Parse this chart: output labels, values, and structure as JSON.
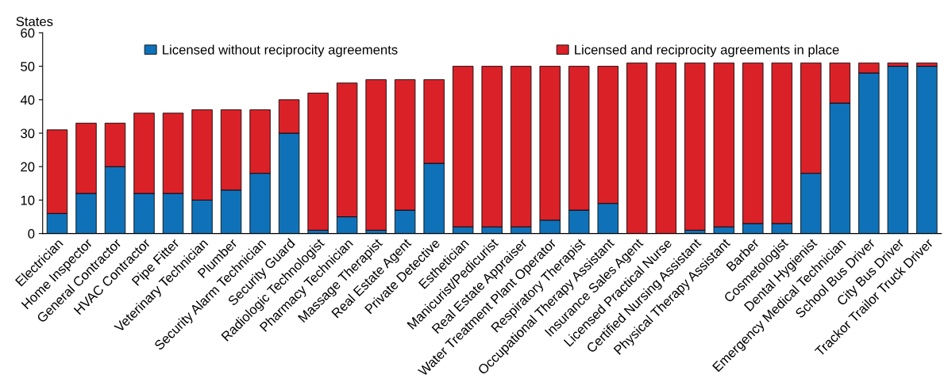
{
  "chart_data": {
    "type": "bar",
    "stacked": true,
    "ylabel": "States",
    "categories": [
      "Electrician",
      "Home Inspector",
      "General Contractor",
      "HVAC Contractor",
      "Pipe Fitter",
      "Veterinary Technician",
      "Plumber",
      "Security Alarm Technician",
      "Security Guard",
      "Radiologic Technologist",
      "Pharmacy Technician",
      "Massage Therapist",
      "Real Estate Agent",
      "Private Detective",
      "Esthetician",
      "Manicurist/Pedicurist",
      "Real Estate Appraiser",
      "Water Treatment Plant Operator",
      "Respiratory Therapist",
      "Occupational Therapy Assistant",
      "Insurance Sales Agent",
      "Licensed Practical Nurse",
      "Certified Nursing Assistant",
      "Physical Therapy Assistant",
      "Barber",
      "Cosmetologist",
      "Dental Hygienist",
      "Emergency Medical Technician",
      "School Bus Driver",
      "City Bus Driver",
      "Trackor Trailor Truck Driver"
    ],
    "series": [
      {
        "name": "Licensed without reciprocity agreements",
        "color": "#0f72b8",
        "values": [
          6,
          12,
          20,
          12,
          12,
          10,
          13,
          18,
          30,
          1,
          5,
          1,
          7,
          21,
          2,
          2,
          2,
          4,
          7,
          9,
          0,
          0,
          1,
          2,
          3,
          3,
          18,
          39,
          48,
          50,
          50
        ]
      },
      {
        "name": "Licensed and reciprocity agreements in place",
        "color": "#db2128",
        "values": [
          25,
          21,
          13,
          24,
          24,
          27,
          24,
          19,
          10,
          41,
          40,
          45,
          39,
          25,
          48,
          48,
          48,
          46,
          43,
          41,
          51,
          51,
          50,
          49,
          48,
          48,
          33,
          12,
          3,
          1,
          1
        ]
      }
    ],
    "ylim": [
      0,
      60
    ],
    "yticks": [
      0,
      10,
      20,
      30,
      40,
      50,
      60
    ],
    "grid": false,
    "legend": "top"
  }
}
